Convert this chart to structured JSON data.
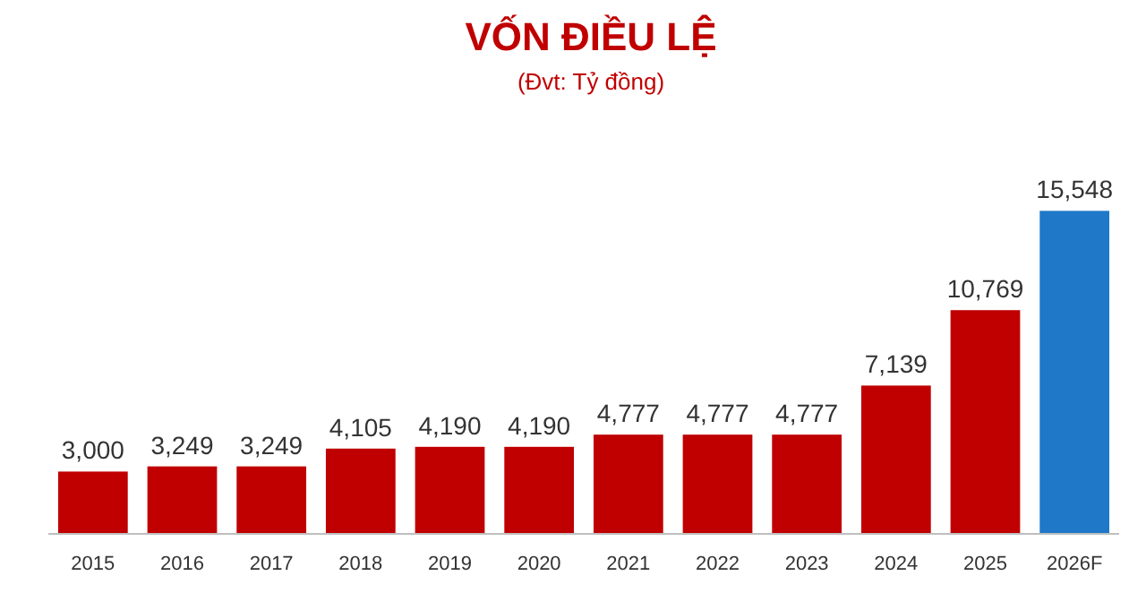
{
  "chart_data": {
    "type": "bar",
    "title": "VỐN ĐIỀU LỆ",
    "subtitle": "(Đvt: Tỷ đồng)",
    "categories": [
      "2015",
      "2016",
      "2017",
      "2018",
      "2019",
      "2020",
      "2021",
      "2022",
      "2023",
      "2024",
      "2025",
      "2026F"
    ],
    "values": [
      3000,
      3249,
      3249,
      4105,
      4190,
      4190,
      4777,
      4777,
      4777,
      7139,
      10769,
      15548
    ],
    "colors": [
      "#c00000",
      "#c00000",
      "#c00000",
      "#c00000",
      "#c00000",
      "#c00000",
      "#c00000",
      "#c00000",
      "#c00000",
      "#c00000",
      "#c00000",
      "#1f78c8"
    ],
    "value_labels": [
      "3,000",
      "3,249",
      "3,249",
      "4,105",
      "4,190",
      "4,190",
      "4,777",
      "4,777",
      "4,777",
      "7,139",
      "10,769",
      "15,548"
    ]
  }
}
